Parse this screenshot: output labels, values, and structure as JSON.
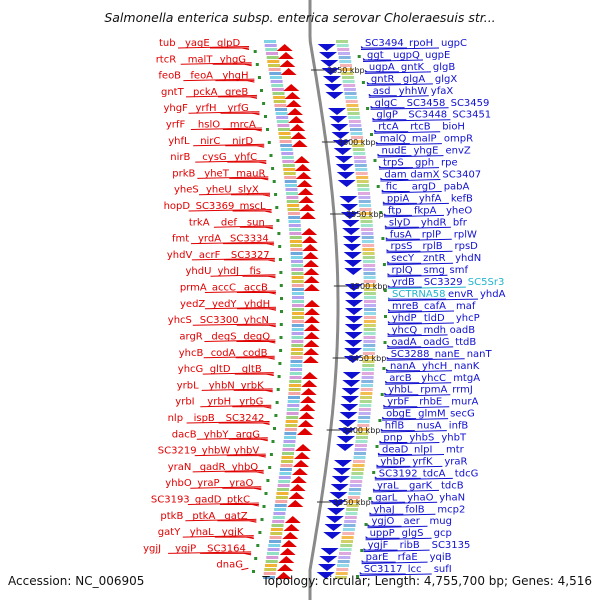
{
  "title": "Salmonella enterica subsp. enterica serovar Choleraesuis str...",
  "footer": {
    "accession": "Accession: NC_006905",
    "summary": "Topology: circular; Length: 4,755,700 bp; Genes: 4,516"
  },
  "colors": {
    "reverse_strand": "#e00000",
    "forward_strand": "#1010d0",
    "rna": "#22b4cc",
    "backbone": "#8a8a8a"
  },
  "kbp_ticks": [
    "3650 kbp",
    "3600 kbp",
    "3550 kbp",
    "3500 kbp",
    "3450 kbp",
    "3400 kbp",
    "3350 kbp"
  ],
  "left_labels": [
    "tub",
    "yagE",
    "glpD",
    "rtcR",
    "malT",
    "yhgG",
    "feoB",
    "feoA",
    "yhgH",
    "gntT",
    "pckA",
    "greB",
    "yhgF",
    "yrfH",
    "yrfG",
    "yrfF",
    "hslO",
    "mrcA",
    "yhfL",
    "nirC",
    "nirD",
    "nirB",
    "cysG",
    "yhfC",
    "prkB",
    "yheT",
    "mauR",
    "yheS",
    "yheU",
    "slyX",
    "hopD",
    "SC3369",
    "mscL",
    "trkA",
    "def",
    "sun",
    "fmt",
    "yrdA",
    "SC3334",
    "yhdV",
    "acrF",
    "SC3327",
    "yhdU",
    "yhdJ",
    "fis",
    "prmA",
    "accC",
    "accB",
    "yedZ",
    "yedY",
    "yhdH",
    "yhcS",
    "SC3300",
    "yhcN",
    "argR",
    "degS",
    "degQ",
    "yhcB",
    "codA",
    "codB",
    "yhcG",
    "gltD",
    "gltB",
    "yrbL",
    "yhbN",
    "yrbK",
    "yrbI",
    "yrbH",
    "yrbG",
    "nlp",
    "ispB",
    "SC3242",
    "dacB",
    "yhbY",
    "argG",
    "SC3219",
    "yhbW",
    "yhbV",
    "yraN",
    "gadR",
    "yhbQ",
    "yhbO",
    "yraP",
    "yraO",
    "SC3193",
    "gadD",
    "ptkC",
    "ptkB",
    "ptkA",
    "gatZ",
    "gatY",
    "yhaL",
    "ygjK",
    "ygjJ",
    "ygjP",
    "SC3164",
    "dnaG"
  ],
  "right_labels": [
    "SC3494",
    "rpoH",
    "ugpC",
    "ggt",
    "ugpQ",
    "ugpE",
    "ugpA",
    "gntK",
    "glgB",
    "gntR",
    "glgA",
    "glgX",
    "asd",
    "yhhW",
    "yfaX",
    "glgC",
    "SC3458",
    "SC3459",
    "glgP",
    "SC3448",
    "SC3451",
    "rtcA",
    "rtcB",
    "bioH",
    "malQ",
    "malP",
    "ompR",
    "nudE",
    "yhgE",
    "envZ",
    "trpS",
    "gph",
    "rpe",
    "dam",
    "damX",
    "SC3407",
    "fic",
    "argD",
    "pabA",
    "ppiA",
    "yhfA",
    "kefB",
    "ftp",
    "fkpA",
    "yheO",
    "slyD",
    "yhdR",
    "bfr",
    "fusA",
    "rplP",
    "rplW",
    "rpsS",
    "rplB",
    "rpsD",
    "secY",
    "zntR",
    "yhdN",
    "rplQ",
    "smg",
    "smf",
    "yrdB",
    "SC3329",
    "SC5Sr3",
    "SCTRNA58",
    "envR",
    "yhdA",
    "mreB",
    "cafA",
    "maf",
    "yhdP",
    "tldD",
    "yhcP",
    "yhcQ",
    "mdh",
    "oadB",
    "oadA",
    "oadG",
    "ttdB",
    "SC3288",
    "nanE",
    "nanT",
    "nanA",
    "yhcH",
    "nanK",
    "arcB",
    "yhcC",
    "mtgA",
    "yhbL",
    "rpmA",
    "rrmJ",
    "yrbF",
    "rhbE",
    "murA",
    "obgE",
    "glmM",
    "secG",
    "hflB",
    "nusA",
    "infB",
    "pnp",
    "yhbS",
    "yhbT",
    "deaD",
    "nlpI",
    "mtr",
    "yhbP",
    "yrfK",
    "yraR",
    "SC3192",
    "tdcA",
    "tdcG",
    "yraL",
    "garK",
    "tdcB",
    "garL",
    "yhaO",
    "yhaN",
    "yhaJ",
    "folB",
    "mcp2",
    "ygjO",
    "aer",
    "mug",
    "uppP",
    "glgS",
    "gcp",
    "ygjF",
    "ribB",
    "SC3135",
    "parE",
    "rfaE",
    "yqiB",
    "SC3117",
    "lcc",
    "sufI"
  ]
}
